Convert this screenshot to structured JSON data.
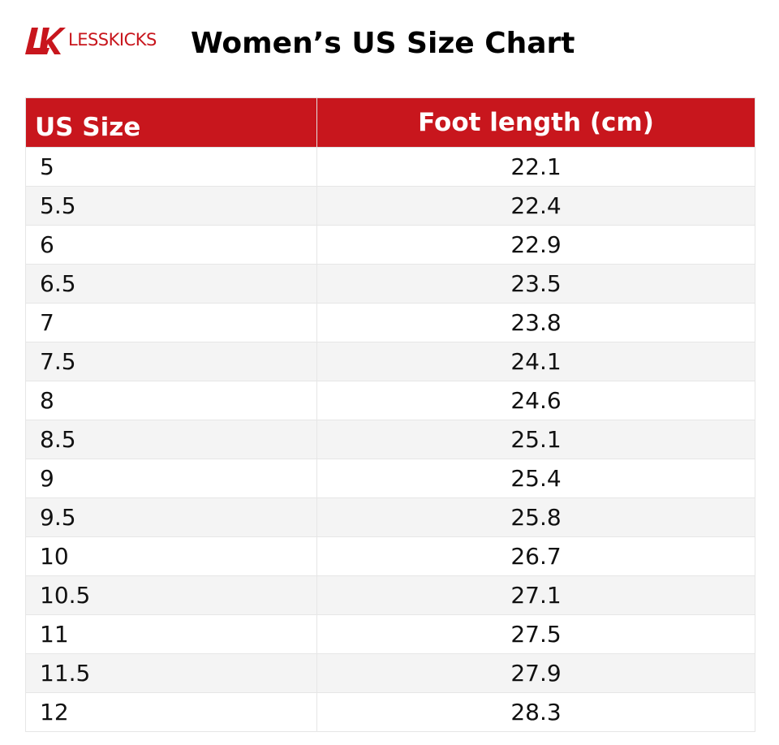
{
  "brand": {
    "name": "LESSKICKS",
    "logo_letters": "LK",
    "color": "#c8161d"
  },
  "title": "Women’s US Size Chart",
  "table": {
    "header_color": "#c8161d",
    "columns": [
      "US Size",
      "Foot length (cm)"
    ],
    "rows": [
      [
        "5",
        "22.1"
      ],
      [
        "5.5",
        "22.4"
      ],
      [
        "6",
        "22.9"
      ],
      [
        "6.5",
        "23.5"
      ],
      [
        "7",
        "23.8"
      ],
      [
        "7.5",
        "24.1"
      ],
      [
        "8",
        "24.6"
      ],
      [
        "8.5",
        "25.1"
      ],
      [
        "9",
        "25.4"
      ],
      [
        "9.5",
        "25.8"
      ],
      [
        "10",
        "26.7"
      ],
      [
        "10.5",
        "27.1"
      ],
      [
        "11",
        "27.5"
      ],
      [
        "11.5",
        "27.9"
      ],
      [
        "12",
        "28.3"
      ]
    ]
  }
}
